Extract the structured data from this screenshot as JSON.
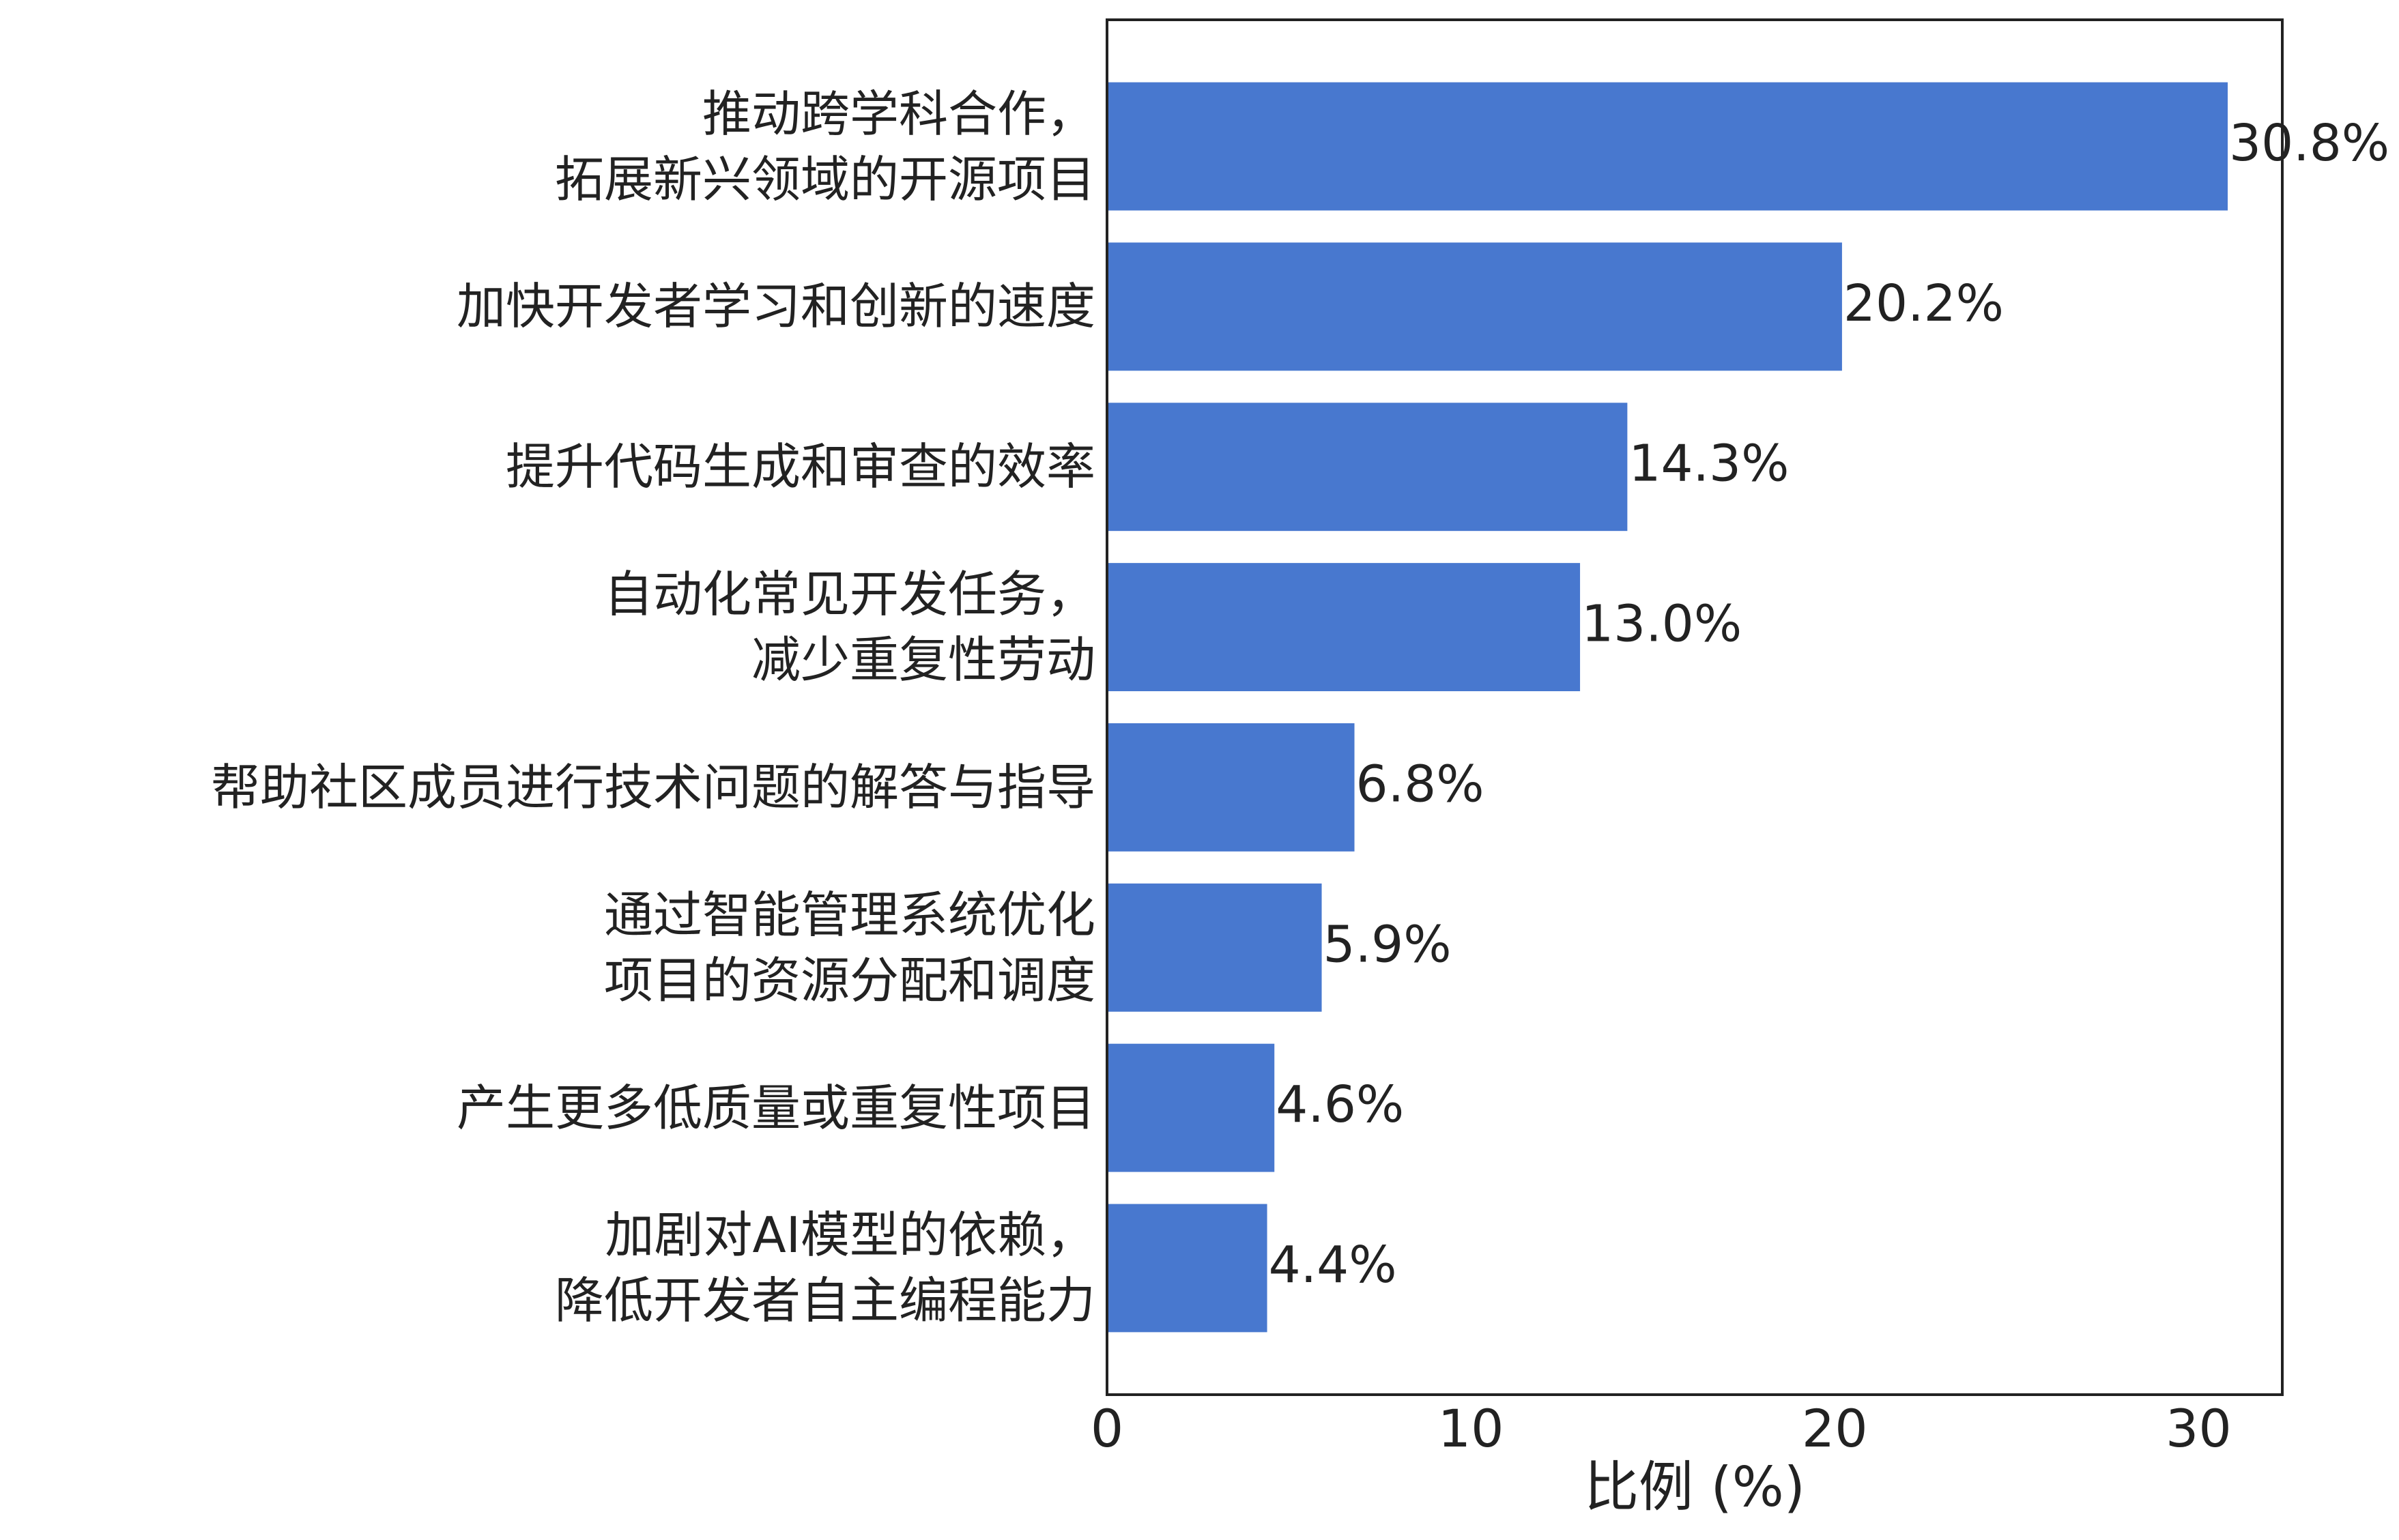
{
  "chart_data": {
    "type": "barh",
    "xlabel": "比例 (%)",
    "categories": [
      "推动跨学科合作，\n拓展新兴领域的开源项目",
      "加快开发者学习和创新的速度",
      "提升代码生成和审查的效率",
      "自动化常见开发任务，\n减少重复性劳动",
      "帮助社区成员进行技术问题的解答与指导",
      "通过智能管理系统优化\n项目的资源分配和调度",
      "产生更多低质量或重复性项目",
      "加剧对AI模型的依赖，\n降低开发者自主编程能力"
    ],
    "values": [
      30.8,
      20.2,
      14.3,
      13.0,
      6.8,
      5.9,
      4.6,
      4.4
    ],
    "value_labels": [
      "30.8%",
      "20.2%",
      "14.3%",
      "13.0%",
      "6.8%",
      "5.9%",
      "4.6%",
      "4.4%"
    ],
    "color": "#4878cf",
    "xlim": [
      0,
      32.3
    ],
    "xticks": [
      0,
      10,
      20,
      30
    ],
    "grid": false
  }
}
